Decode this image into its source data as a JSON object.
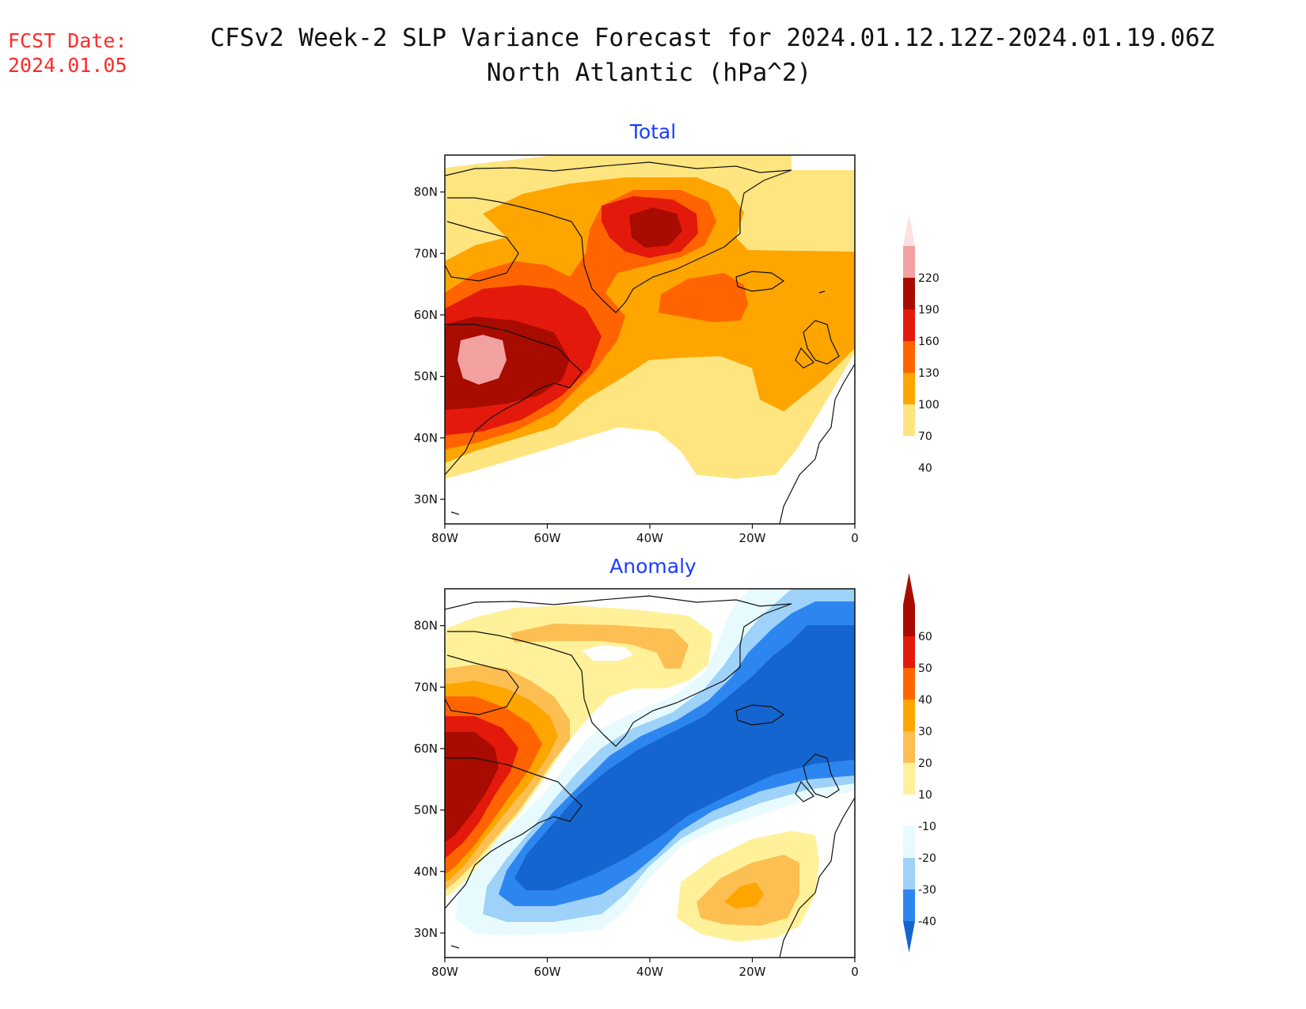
{
  "fcst_label": "FCST Date:",
  "fcst_date": "2024.01.05",
  "title_line1": "CFSv2 Week-2 SLP Variance Forecast for 2024.01.12.12Z-2024.01.19.06Z",
  "title_line2": "North Atlantic (hPa^2)",
  "panels": [
    {
      "title": "Total",
      "lat_ticks": [
        "80N",
        "70N",
        "60N",
        "50N",
        "40N",
        "30N"
      ],
      "lon_ticks": [
        "80W",
        "60W",
        "40W",
        "20W",
        "0"
      ],
      "colorbar_levels": [
        "40",
        "70",
        "100",
        "130",
        "160",
        "190",
        "220"
      ],
      "colors": {
        "l40": "#ffe57f",
        "l70": "#ffa500",
        "l100": "#ff6400",
        "l130": "#e31a0b",
        "l160": "#a80b00",
        "l190": "#f2a0a0",
        "l220": "#fde0e0"
      }
    },
    {
      "title": "Anomaly",
      "lat_ticks": [
        "80N",
        "70N",
        "60N",
        "50N",
        "40N",
        "30N"
      ],
      "lon_ticks": [
        "80W",
        "60W",
        "40W",
        "20W",
        "0"
      ],
      "colorbar_levels": [
        "60",
        "50",
        "40",
        "30",
        "20",
        "10",
        "-10",
        "-20",
        "-30",
        "-40"
      ],
      "colors": {
        "p60": "#a80b00",
        "p50": "#e31a0b",
        "p40": "#ff6400",
        "p30": "#ffa500",
        "p20": "#fdbf52",
        "p10": "#fff19a",
        "n10": "#e7fbff",
        "n20": "#9ed2f8",
        "n30": "#2d86f0",
        "n40": "#1565d0"
      }
    }
  ]
}
